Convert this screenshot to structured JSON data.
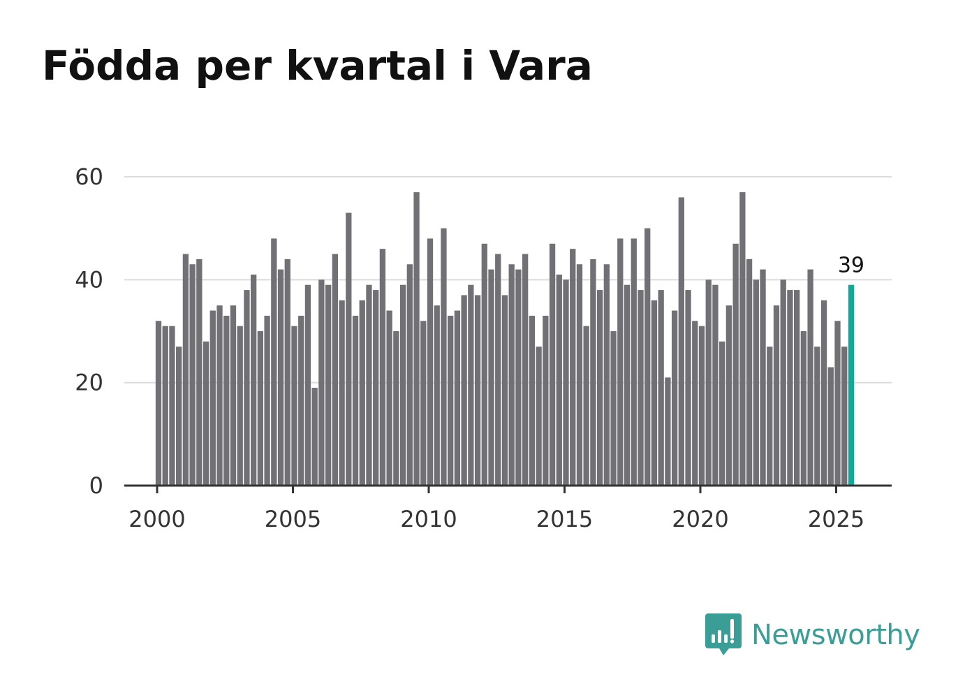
{
  "chart_data": {
    "type": "bar",
    "title": "Födda per kvartal i Vara",
    "xlabel": "",
    "ylabel": "",
    "ylim": [
      0,
      60
    ],
    "yticks": [
      0,
      20,
      40,
      60
    ],
    "xticks": [
      "2000",
      "2005",
      "2010",
      "2015",
      "2020",
      "2025"
    ],
    "x_start_year": 2000,
    "periods_per_year": 4,
    "grid": true,
    "values": [
      32,
      31,
      31,
      27,
      45,
      43,
      44,
      28,
      34,
      35,
      33,
      35,
      31,
      38,
      41,
      30,
      33,
      48,
      42,
      44,
      31,
      33,
      39,
      19,
      40,
      39,
      45,
      36,
      53,
      33,
      36,
      39,
      38,
      46,
      34,
      30,
      39,
      43,
      57,
      32,
      48,
      35,
      50,
      33,
      34,
      37,
      39,
      37,
      47,
      42,
      45,
      37,
      43,
      42,
      45,
      33,
      27,
      33,
      47,
      41,
      40,
      46,
      43,
      31,
      44,
      38,
      43,
      30,
      48,
      39,
      48,
      38,
      50,
      36,
      38,
      21,
      34,
      56,
      38,
      32,
      31,
      40,
      39,
      28,
      35,
      47,
      57,
      44,
      40,
      42,
      27,
      35,
      40,
      38,
      38,
      30,
      42,
      27,
      36,
      23,
      32,
      27,
      39
    ],
    "highlight_label": "39",
    "bar_color": "#717074",
    "highlight_color": "#14a898"
  },
  "brand": {
    "name": "Newsworthy",
    "color": "#3a9e97"
  }
}
